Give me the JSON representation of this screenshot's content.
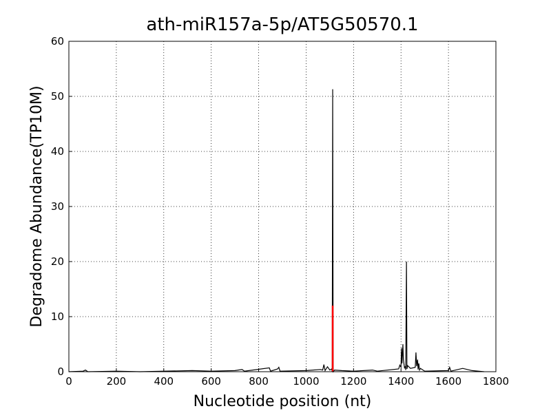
{
  "chart_data": {
    "type": "line",
    "title": "ath-miR157a-5p/AT5G50570.1",
    "x_label": "Nucleotide position (nt)",
    "y_label": "Degradome Abundance(TP10M)",
    "xlim": [
      0,
      1800
    ],
    "xticks": [
      0,
      200,
      400,
      600,
      800,
      1000,
      1200,
      1400,
      1600,
      1800
    ],
    "ylim": [
      0,
      60
    ],
    "yticks": [
      0,
      10,
      20,
      30,
      40,
      50,
      60
    ],
    "grid": true,
    "series": [
      {
        "color": "#000000",
        "x": [
          0,
          60,
          70,
          80,
          200,
          300,
          520,
          600,
          700,
          730,
          740,
          845,
          850,
          880,
          885,
          890,
          1000,
          1060,
          1070,
          1075,
          1080,
          1090,
          1100,
          1108,
          1110,
          1112,
          1114,
          1120,
          1150,
          1200,
          1280,
          1300,
          1390,
          1395,
          1400,
          1402,
          1404,
          1408,
          1410,
          1415,
          1418,
          1420,
          1423,
          1425,
          1428,
          1440,
          1460,
          1463,
          1466,
          1470,
          1472,
          1475,
          1478,
          1482,
          1500,
          1600,
          1605,
          1610,
          1660,
          1700,
          1750
        ],
        "values": [
          0,
          0.1,
          0.3,
          0,
          0.1,
          0,
          0.2,
          0.1,
          0.2,
          0.4,
          0.1,
          0.7,
          0.1,
          0.5,
          0.8,
          0.1,
          0.2,
          0.4,
          0.3,
          1.3,
          0.2,
          0.9,
          0.3,
          0.5,
          0,
          51.3,
          0,
          0.3,
          0.2,
          0.1,
          0.3,
          0.1,
          0.5,
          1.2,
          0.8,
          4.3,
          1.5,
          5,
          2.2,
          0.6,
          1.0,
          0.3,
          20,
          0.5,
          1.1,
          0.6,
          0.8,
          3.5,
          1,
          2.2,
          0.4,
          1.5,
          0.3,
          0.6,
          0.1,
          0.2,
          0.8,
          0.1,
          0.6,
          0.2,
          0
        ]
      },
      {
        "color": "#ff0000",
        "x": [
          1112,
          1112
        ],
        "values": [
          0,
          12
        ]
      }
    ]
  }
}
